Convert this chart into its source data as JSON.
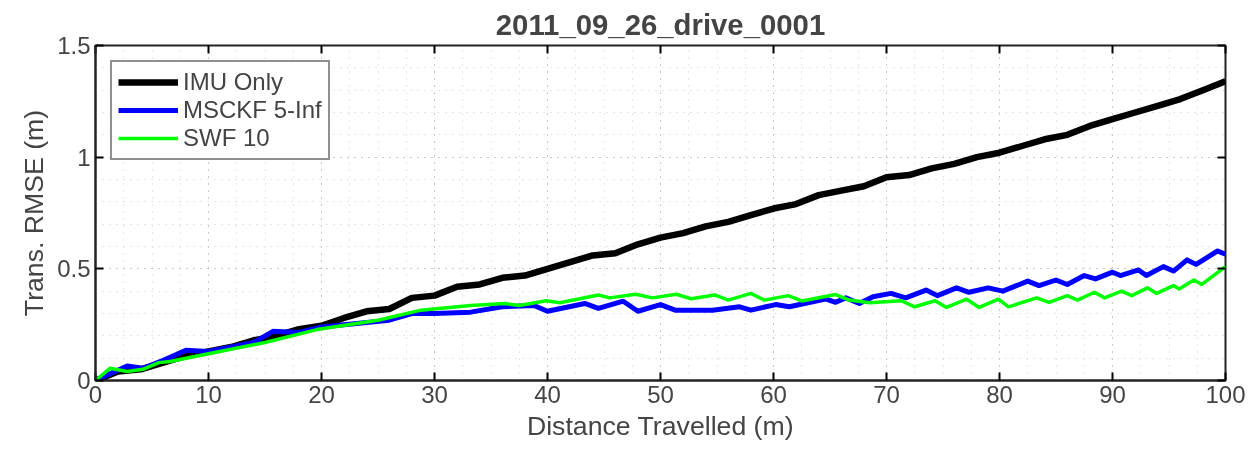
{
  "chart_data": {
    "type": "line",
    "title": "2011_09_26_drive_0001",
    "xlabel": "Distance Travelled (m)",
    "ylabel": "Trans. RMSE (m)",
    "xlim": [
      0,
      100
    ],
    "ylim": [
      0,
      1.5
    ],
    "xticks": [
      0,
      10,
      20,
      30,
      40,
      50,
      60,
      70,
      80,
      90,
      100
    ],
    "yticks": [
      0,
      {
        "value": 0.5,
        "label": "0.5"
      },
      1,
      {
        "value": 1.5,
        "label": "1.5"
      }
    ],
    "grid": true,
    "legend": "top left",
    "line_style": "solid",
    "marker": "none",
    "series": [
      {
        "name": "IMU Only",
        "color": "#000000",
        "x": [
          0,
          2,
          4,
          6,
          8,
          10,
          12,
          14,
          16,
          18,
          20,
          22,
          24,
          26,
          28,
          30,
          32,
          34,
          36,
          38,
          40,
          42,
          44,
          46,
          48,
          50,
          52,
          54,
          56,
          58,
          60,
          62,
          64,
          66,
          68,
          70,
          72,
          74,
          76,
          78,
          80,
          82,
          84,
          86,
          88,
          90,
          92,
          94,
          96,
          98,
          100
        ],
        "values": [
          0,
          0.04,
          0.05,
          0.08,
          0.11,
          0.13,
          0.15,
          0.18,
          0.2,
          0.23,
          0.245,
          0.28,
          0.31,
          0.32,
          0.37,
          0.38,
          0.42,
          0.43,
          0.46,
          0.47,
          0.5,
          0.53,
          0.56,
          0.57,
          0.61,
          0.64,
          0.66,
          0.69,
          0.71,
          0.74,
          0.77,
          0.79,
          0.83,
          0.85,
          0.87,
          0.91,
          0.92,
          0.95,
          0.97,
          1.0,
          1.02,
          1.05,
          1.08,
          1.1,
          1.14,
          1.17,
          1.2,
          1.23,
          1.26,
          1.3,
          1.34
        ]
      },
      {
        "name": "MSCKF 5-Inf",
        "color": "#0000ff",
        "x": [
          0,
          2.8,
          4.2,
          6,
          8,
          10,
          12,
          14,
          15.7,
          18,
          20,
          22,
          24,
          26,
          28,
          30,
          33.2,
          36,
          38.8,
          40,
          43.3,
          44.5,
          46.7,
          48,
          50,
          51.3,
          54.6,
          57,
          58,
          60.2,
          61.4,
          64.6,
          65.5,
          66.4,
          67.6,
          68.8,
          70.4,
          71.7,
          73.5,
          74.5,
          76.2,
          77.3,
          79,
          80.3,
          82.5,
          83.5,
          85,
          86,
          87.5,
          88.5,
          90,
          90.7,
          92.3,
          93,
          94.5,
          95.4,
          96.6,
          97.4,
          99.3,
          100
        ],
        "values": [
          0,
          0.065,
          0.055,
          0.09,
          0.135,
          0.13,
          0.15,
          0.17,
          0.22,
          0.215,
          0.24,
          0.25,
          0.26,
          0.27,
          0.3,
          0.3,
          0.306,
          0.33,
          0.336,
          0.31,
          0.345,
          0.323,
          0.355,
          0.31,
          0.34,
          0.315,
          0.315,
          0.33,
          0.315,
          0.34,
          0.33,
          0.365,
          0.35,
          0.37,
          0.345,
          0.375,
          0.39,
          0.37,
          0.405,
          0.38,
          0.415,
          0.395,
          0.415,
          0.4,
          0.445,
          0.425,
          0.45,
          0.43,
          0.47,
          0.455,
          0.485,
          0.47,
          0.495,
          0.47,
          0.51,
          0.49,
          0.54,
          0.52,
          0.58,
          0.565
        ]
      },
      {
        "name": "SWF 10",
        "color": "#00ff00",
        "x": [
          0,
          1.3,
          2.8,
          4.2,
          5.6,
          6.6,
          10,
          15,
          19.6,
          25,
          28.8,
          33.2,
          36.2,
          37.5,
          39.9,
          41.1,
          44.5,
          45.5,
          47.8,
          49.3,
          51.4,
          52.7,
          54.8,
          56,
          58,
          59.2,
          61.3,
          62.5,
          65.5,
          66.7,
          68.5,
          71.3,
          72.5,
          74.3,
          75.3,
          77.1,
          78.2,
          79.9,
          80.8,
          83.3,
          84.4,
          86,
          86.9,
          88.4,
          89.3,
          90.8,
          91.7,
          93.1,
          93.9,
          95.4,
          95.9,
          97.2,
          97.9,
          100
        ],
        "values": [
          0,
          0.055,
          0.04,
          0.05,
          0.08,
          0.085,
          0.12,
          0.17,
          0.228,
          0.27,
          0.315,
          0.336,
          0.345,
          0.336,
          0.357,
          0.348,
          0.383,
          0.37,
          0.386,
          0.37,
          0.386,
          0.366,
          0.383,
          0.36,
          0.39,
          0.36,
          0.38,
          0.356,
          0.385,
          0.36,
          0.348,
          0.357,
          0.33,
          0.357,
          0.327,
          0.364,
          0.327,
          0.364,
          0.33,
          0.37,
          0.35,
          0.38,
          0.36,
          0.395,
          0.37,
          0.4,
          0.38,
          0.415,
          0.39,
          0.425,
          0.41,
          0.45,
          0.43,
          0.51
        ]
      }
    ]
  }
}
